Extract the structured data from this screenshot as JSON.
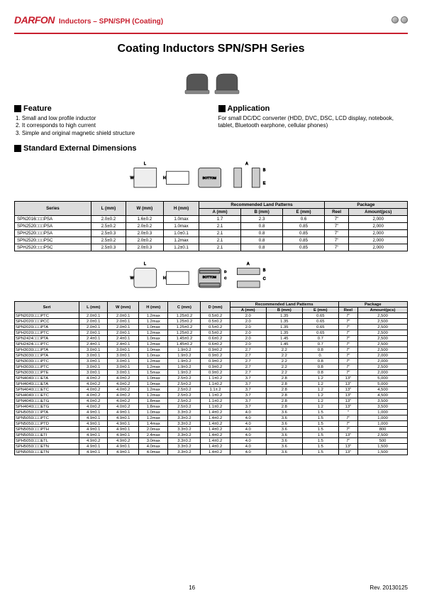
{
  "header": {
    "logo": "DARFON",
    "title": "Inductors – SPN/SPH (Coating)"
  },
  "main_title": "Coating Inductors SPN/SPH Series",
  "feature": {
    "heading": "Feature",
    "items": [
      "1. Small and low profile inductor",
      "2. It corresponds to high current",
      "3. Simple and original magnetic shield structure"
    ]
  },
  "application": {
    "heading": "Application",
    "text": "For small DC/DC converter (HDD, DVC, DSC, LCD display, notebook, tablet, Bluetooth earphone, cellular phones)"
  },
  "dimensions_heading": "Standard External Dimensions",
  "table1": {
    "head_series": "Series",
    "head_L": "L\n(mm)",
    "head_W": "W\n(mm)",
    "head_H": "H\n(mm)",
    "head_group_rlp": "Recommended Land Patterns",
    "head_A": "A\n(mm)",
    "head_B": "B\n(mm)",
    "head_E": "E\n(mm)",
    "head_group_pkg": "Package",
    "head_reel": "Reel",
    "head_amount": "Amount(pcs)",
    "rows": [
      {
        "series": "SPN2016□□□PSA",
        "l": "2.0±0.2",
        "w": "1.6±0.2",
        "h": "1.0max",
        "a": "1.7",
        "b": "2.3",
        "e": "0.6",
        "reel": "7\"",
        "amt": "2,000"
      },
      {
        "series": "SPN2520□□□PSA",
        "l": "2.5±0.2",
        "w": "2.0±0.2",
        "h": "1.0max",
        "a": "2.1",
        "b": "0.8",
        "e": "0.85",
        "reel": "7\"",
        "amt": "2,000"
      },
      {
        "series": "SPH2520□□□PSA",
        "l": "2.5±0.3",
        "w": "2.0±0.3",
        "h": "1.0±0.1",
        "a": "2.1",
        "b": "0.8",
        "e": "0.85",
        "reel": "7\"",
        "amt": "2,000"
      },
      {
        "series": "SPN2520□□□PSC",
        "l": "2.5±0.2",
        "w": "2.0±0.2",
        "h": "1.2max",
        "a": "2.1",
        "b": "0.8",
        "e": "0.85",
        "reel": "7\"",
        "amt": "2,000"
      },
      {
        "series": "SPH2520□□□PSC",
        "l": "2.5±0.3",
        "w": "2.0±0.3",
        "h": "1.2±0.1",
        "a": "2.1",
        "b": "0.8",
        "e": "0.85",
        "reel": "7\"",
        "amt": "2,000"
      }
    ]
  },
  "table2": {
    "head_seri": "Seri",
    "head_L": "L\n(mm)",
    "head_W": "W\n(mm)",
    "head_H": "H\n(mm)",
    "head_C": "C\n(mm)",
    "head_D": "D\n(mm)",
    "head_group_rlp": "Recommended Land Patterns",
    "head_A": "A\n(mm)",
    "head_B": "B\n(mm)",
    "head_E": "E\n(mm)",
    "head_group_pkg": "Package",
    "head_reel": "Reel",
    "head_amount": "Amount(pcs)",
    "rows": [
      {
        "s": "SPN2020□□□PTC",
        "l": "2.0±0.1",
        "w": "2.0±0.1",
        "h": "1.2max",
        "c": "1.25±0.2",
        "d": "0.5±0.2",
        "a": "2.0",
        "b": "1.35",
        "e": "0.65",
        "r": "7\"",
        "amt": "2,500"
      },
      {
        "s": "SPH2020□□□PCC",
        "l": "2.0±0.1",
        "w": "2.0±0.1",
        "h": "1.2max",
        "c": "1.25±0.2",
        "d": "0.5±0.2",
        "a": "2.0",
        "b": "1.35",
        "e": "0.65",
        "r": "7\"",
        "amt": "2,500"
      },
      {
        "s": "SPN2020□□□PTA",
        "l": "2.0±0.1",
        "w": "2.0±0.1",
        "h": "1.0max",
        "c": "1.25±0.2",
        "d": "0.5±0.2",
        "a": "2.0",
        "b": "1.35",
        "e": "0.65",
        "r": "7\"",
        "amt": "2,500"
      },
      {
        "s": "SPH2020□□□PTC",
        "l": "2.0±0.1",
        "w": "2.0±0.1",
        "h": "1.2max",
        "c": "1.25±0.2",
        "d": "0.5±0.2",
        "a": "2.0",
        "b": "1.35",
        "e": "0.65",
        "r": "7\"",
        "amt": "2,500"
      },
      {
        "s": "SPN2424□□□PTA",
        "l": "2.4±0.1",
        "w": "2.4±0.1",
        "h": "1.0max",
        "c": "1.45±0.2",
        "d": "0.6±0.2",
        "a": "2.0",
        "b": "1.45",
        "e": "0.7",
        "r": "7\"",
        "amt": "2,500"
      },
      {
        "s": "SPH2424□□□PTC",
        "l": "2.4±0.1",
        "w": "2.4±0.1",
        "h": "1.2max",
        "c": "1.45±0.2",
        "d": "0.6±0.2",
        "a": "2.0",
        "b": "1.45",
        "e": "0.7",
        "r": "7\"",
        "amt": "2,500"
      },
      {
        "s": "SPH3030□□□PTA",
        "l": "3.0±0.1",
        "w": "3.0±0.1",
        "h": "1.0max",
        "c": "1.9±0.2",
        "d": "0.9±0.2",
        "a": "2.7",
        "b": "2.2",
        "e": "0.8",
        "r": "7\"",
        "amt": "2,500"
      },
      {
        "s": "SPN3030□□□PTA",
        "l": "3.0±0.1",
        "w": "3.0±0.1",
        "h": "1.0max",
        "c": "1.9±0.2",
        "d": "0.9±0.2",
        "a": "2.7",
        "b": "2.2",
        "e": "0.",
        "r": "7\"",
        "amt": "2,000"
      },
      {
        "s": "SPN3030□□□PTC",
        "l": "3.0±0.1",
        "w": "3.0±0.1",
        "h": "1.2max",
        "c": "1.9±0.2",
        "d": "0.9±0.2",
        "a": "2.7",
        "b": "2.2",
        "e": "0.8",
        "r": "7\"",
        "amt": "2,000"
      },
      {
        "s": "SPH3030□□□PTC",
        "l": "3.0±0.1",
        "w": "3.0±0.1",
        "h": "1.2max",
        "c": "1.9±0.2",
        "d": "0.9±0.2",
        "a": "2.7",
        "b": "2.2",
        "e": "0.8",
        "r": "7\"",
        "amt": "2,500"
      },
      {
        "s": "SPN3030□□□PTE",
        "l": "3.0±0.1",
        "w": "3.0±0.1",
        "h": "1.5max",
        "c": "1.9±0.2",
        "d": "0.9±0.2",
        "a": "2.7",
        "b": "2.2",
        "e": "0.8",
        "r": "7\"",
        "amt": "2,000"
      },
      {
        "s": "SPN4040□□□ETA",
        "l": "4.0±0.2",
        "w": "4.0±0.2",
        "h": "1.0max",
        "c": "2.5±0.2",
        "d": "1.1±0.2",
        "a": "3.7",
        "b": "2.8",
        "e": "1.2",
        "r": "13\"",
        "amt": "5,000"
      },
      {
        "s": "SPH4040□□□ETA",
        "l": "4.0±0.2",
        "w": "4.0±0.2",
        "h": "1.0max",
        "c": "2.5±0.2",
        "d": "1.1±0.2",
        "a": "3.7",
        "b": "2.8",
        "e": "1.2",
        "r": "13\"",
        "amt": "5,000"
      },
      {
        "s": "SPN4040□□□ETC",
        "l": "4.0±0.2",
        "w": "4.0±0.2",
        "h": "1.2max",
        "c": "2.5±0.2",
        "d": "1.1±.2",
        "a": "3.7",
        "b": "2.8",
        "e": "1.2",
        "r": "13\"",
        "amt": "4,500"
      },
      {
        "s": "SPH4040□□□ETC",
        "l": "4.0±0.2",
        "w": "4.0±0.2",
        "h": "1.2max",
        "c": "2.5±0.2",
        "d": "1.1±0.2",
        "a": "3.7",
        "b": "2.8",
        "e": "1.2",
        "r": "13\"",
        "amt": "4,500"
      },
      {
        "s": "SPN4040□□□ETG",
        "l": "4.0±0.2",
        "w": "4.0±0.2",
        "h": "1.8max",
        "c": "2.5±0.2",
        "d": "1.1±0.2",
        "a": "3.7",
        "b": "2.8",
        "e": "1.2",
        "r": "13\"",
        "amt": "3,500"
      },
      {
        "s": "SPH4040□□□ETG",
        "l": "4.0±0.2",
        "w": "4.0±0.2",
        "h": "1.8max",
        "c": "2.5±0.2",
        "d": "1.1±0.2",
        "a": "3.7",
        "b": "2.8",
        "e": "1.2",
        "r": "13\"",
        "amt": "3,500"
      },
      {
        "s": "SPH5050□□□PTA",
        "l": "4.9±0.1",
        "w": "4.9±0.1",
        "h": "1.0max",
        "c": "3.3±0.2",
        "d": "1.4±0.2",
        "a": "4.0",
        "b": "3.6",
        "e": "1.5",
        "r": "\"",
        "amt": "1,000"
      },
      {
        "s": "SPN5050□□□PTC",
        "l": "4.9±0.1",
        "w": "4.9±0.1",
        "h": "1.2max",
        "c": "3.3±0.2",
        "d": "1.4±0.2",
        "a": "4.0",
        "b": "3.6",
        "e": "1.5",
        "r": "7\"",
        "amt": "1,000"
      },
      {
        "s": "SPN5050□□□PTD",
        "l": "4.9±0.1",
        "w": "4.9±0.1",
        "h": "1.4max",
        "c": "3.3±0.2",
        "d": "1.4±0.2",
        "a": "4.0",
        "b": "3.6",
        "e": "1.5",
        "r": "7\"",
        "amt": "1,000"
      },
      {
        "s": "SPN5050□□□PTH",
        "l": "4.9±0.1",
        "w": "4.9±0.1",
        "h": "2.0max",
        "c": "3.3±0.2",
        "d": "1.4±0.2",
        "a": "4.0",
        "b": "3.6",
        "e": "1.5",
        "r": "7\"",
        "amt": "800"
      },
      {
        "s": "SPN5050□□□ETI",
        "l": "4.9±0.1",
        "w": "4.9±0.1",
        "h": "2.4max",
        "c": "3.3±0.2",
        "d": "1.4±0.2",
        "a": "4.0",
        "b": "3.6",
        "e": "1.5",
        "r": "13\"",
        "amt": "2,500"
      },
      {
        "s": "SPH5050□□□ETL",
        "l": "4.9±0.2",
        "w": "4.9±0.2",
        "h": "3.0max",
        "c": "3.3±0.2",
        "d": "1.4±0.2",
        "a": "4.0",
        "b": "3.6",
        "e": "1.5",
        "r": "7\"",
        "amt": "500"
      },
      {
        "s": "SPH5050□□□ETN",
        "l": "4.9±0.1",
        "w": "4.9±0.1",
        "h": "4.0max",
        "c": "3.3±0.2",
        "d": "1.4±0.2",
        "a": "4.0",
        "b": "3.6",
        "e": "1.5",
        "r": "13\"",
        "amt": "1,500"
      },
      {
        "s": "SPN5050□□□ETN",
        "l": "4.9±0.1",
        "w": "4.9±0.1",
        "h": "4.0max",
        "c": "3.3±0.2",
        "d": "1.4±0.2",
        "a": "4.0",
        "b": "3.6",
        "e": "1.5",
        "r": "13\"",
        "amt": "1,500"
      }
    ]
  },
  "footer": {
    "page": "16",
    "rev": "Rev. 20130125"
  },
  "colors": {
    "brand": "#c8202f",
    "table_header_bg": "#dddddd"
  }
}
